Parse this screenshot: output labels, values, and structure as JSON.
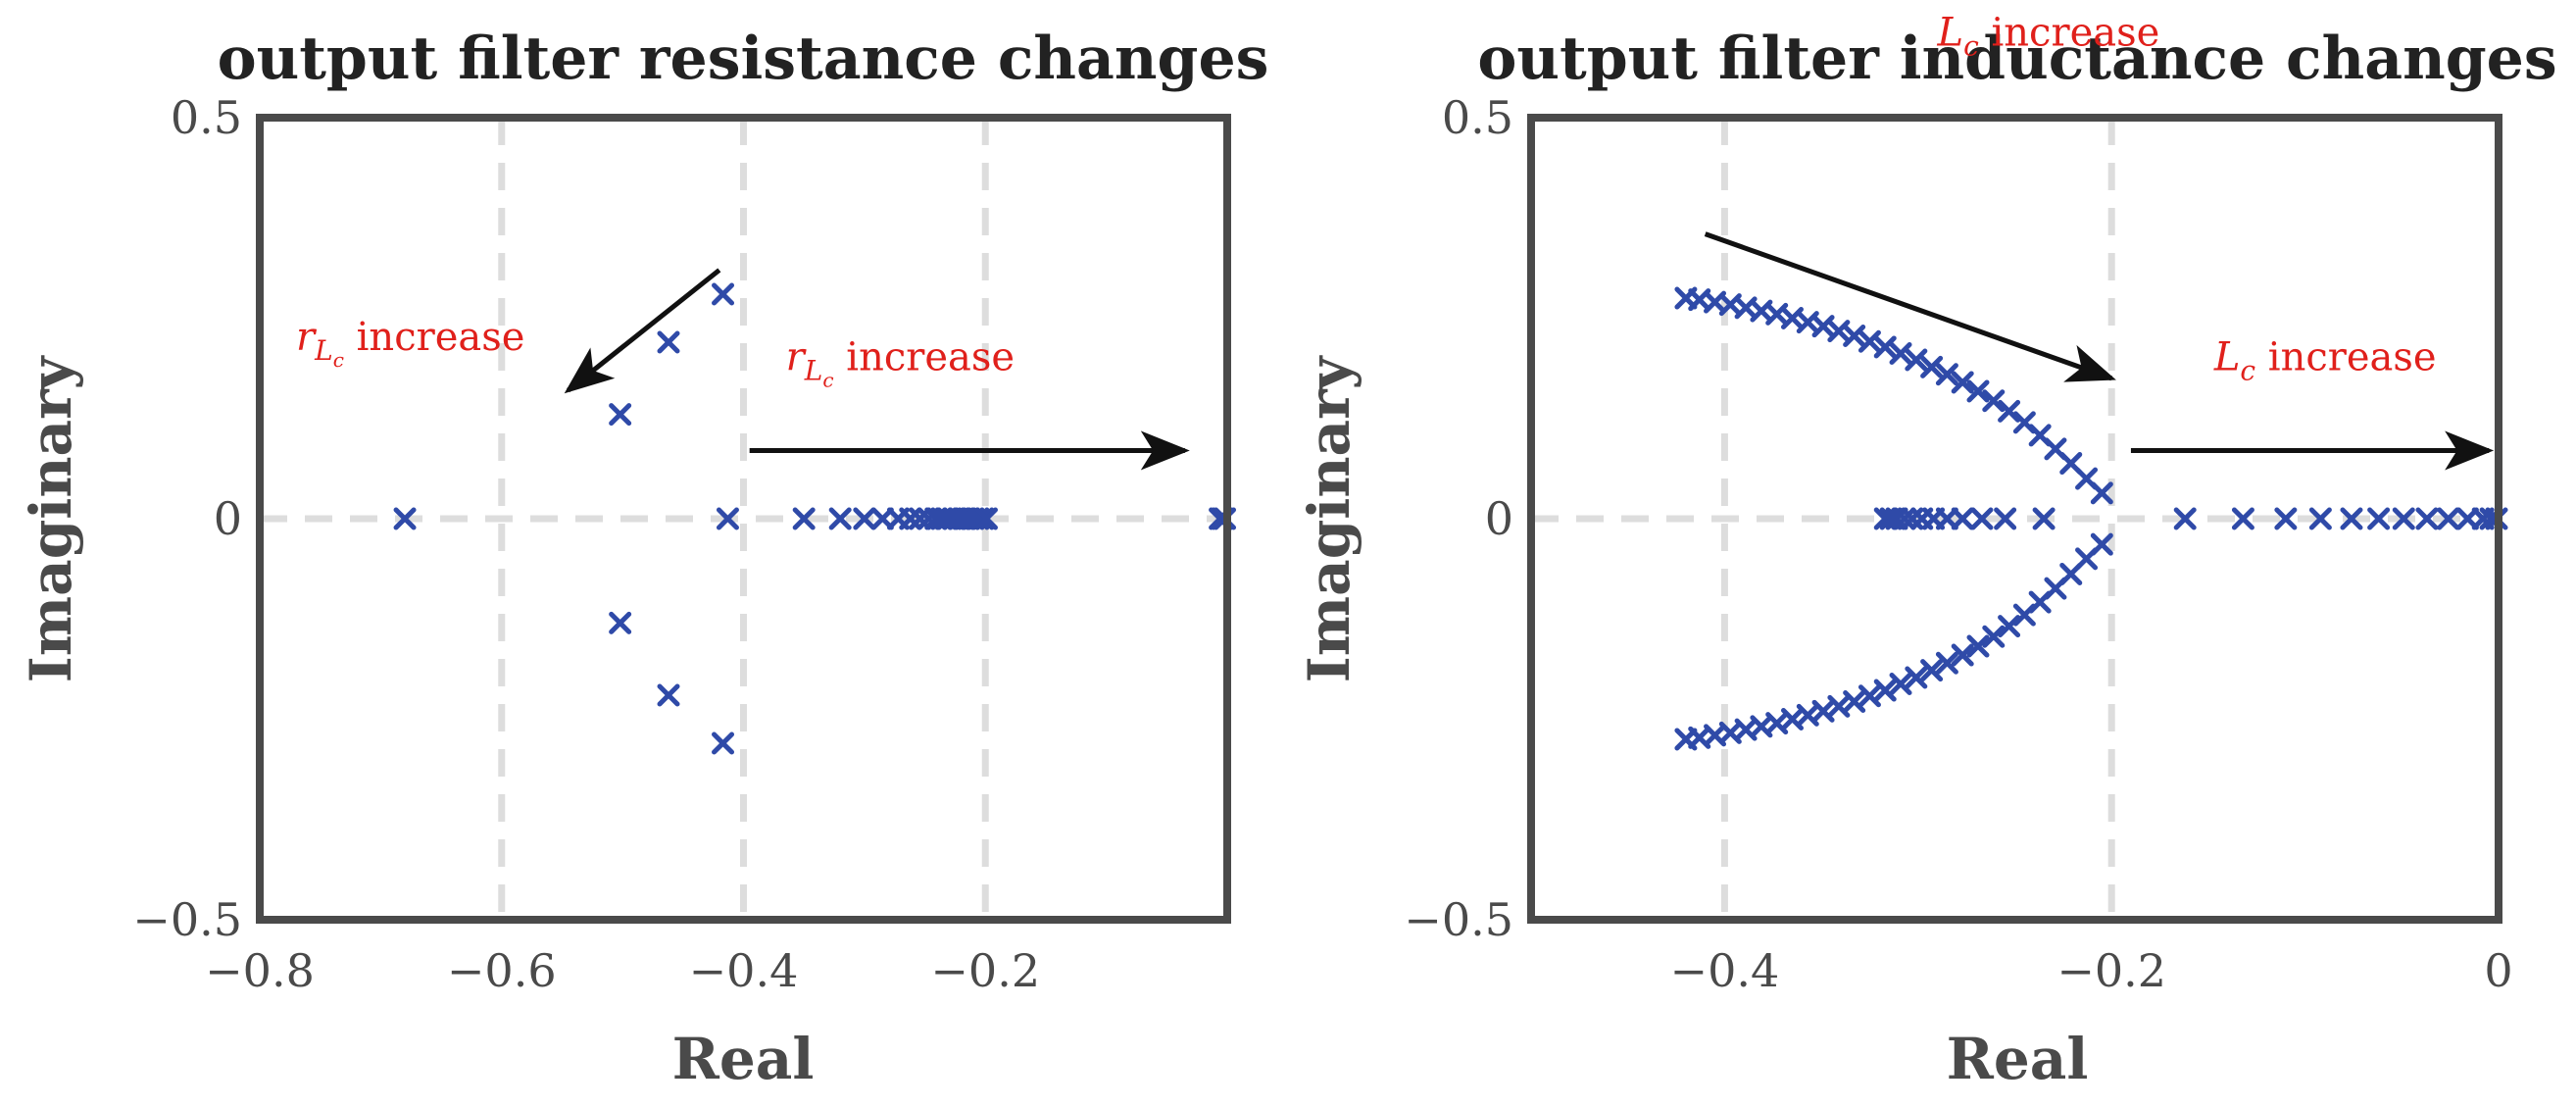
{
  "colors": {
    "marker": "#2f4aa8",
    "axes": "#4a4a4a",
    "grid": "#dddddd",
    "annotation": "#e0201b",
    "arrow": "#111111"
  },
  "chart_data": [
    {
      "type": "scatter",
      "title": "output filter resistance changes",
      "xlabel": "Real",
      "ylabel": "Imaginary",
      "xlim": [
        -0.8,
        0.0
      ],
      "ylim": [
        -0.5,
        0.5
      ],
      "xticks": [
        -0.8,
        -0.6,
        -0.4,
        -0.2
      ],
      "xtick_labels": [
        "−0.8",
        "−0.6",
        "−0.4",
        "−0.2"
      ],
      "yticks": [
        -0.5,
        0,
        0.5
      ],
      "ytick_labels": [
        "−0.5",
        "0",
        "0.5"
      ],
      "grid": "dashed",
      "marker": "x",
      "series": [
        {
          "name": "poles",
          "points": [
            [
              -0.417,
              0.28
            ],
            [
              -0.417,
              -0.28
            ],
            [
              -0.462,
              0.22
            ],
            [
              -0.462,
              -0.22
            ],
            [
              -0.502,
              0.13
            ],
            [
              -0.502,
              -0.13
            ],
            [
              -0.68,
              0.0
            ],
            [
              -0.413,
              0.0
            ],
            [
              -0.35,
              0.0
            ],
            [
              -0.32,
              0.0
            ],
            [
              -0.3,
              0.0
            ],
            [
              -0.285,
              0.0
            ],
            [
              -0.272,
              0.0
            ],
            [
              -0.262,
              0.0
            ],
            [
              -0.254,
              0.0
            ],
            [
              -0.247,
              0.0
            ],
            [
              -0.241,
              0.0
            ],
            [
              -0.236,
              0.0
            ],
            [
              -0.231,
              0.0
            ],
            [
              -0.226,
              0.0
            ],
            [
              -0.222,
              0.0
            ],
            [
              -0.218,
              0.0
            ],
            [
              -0.214,
              0.0
            ],
            [
              -0.21,
              0.0
            ],
            [
              -0.206,
              0.0
            ],
            [
              -0.202,
              0.0
            ],
            [
              -0.199,
              0.0
            ],
            [
              -0.006,
              0.0
            ],
            [
              -0.004,
              0.0
            ],
            [
              -0.002,
              0.0
            ]
          ]
        }
      ],
      "annotations": [
        {
          "label": "r",
          "sub": "L",
          "subsub": "c",
          "suffix": " increase",
          "arrow_from": [
            -0.42,
            0.31
          ],
          "arrow_to": [
            -0.545,
            0.16
          ],
          "text_at": [
            -0.77,
            0.21
          ]
        },
        {
          "label": "r",
          "sub": "L",
          "subsub": "c",
          "suffix": " increase",
          "arrow_from": [
            -0.395,
            0.085
          ],
          "arrow_to": [
            -0.035,
            0.085
          ],
          "text_at": [
            -0.365,
            0.185
          ]
        }
      ]
    },
    {
      "type": "scatter",
      "title": "output filter inductance changes",
      "xlabel": "Real",
      "ylabel": "Imaginary",
      "xlim": [
        -0.5,
        0.0
      ],
      "ylim": [
        -0.5,
        0.5
      ],
      "xticks": [
        -0.4,
        -0.2,
        0
      ],
      "xtick_labels": [
        "−0.4",
        "−0.2",
        "0"
      ],
      "yticks": [
        -0.5,
        0,
        0.5
      ],
      "ytick_labels": [
        "−0.5",
        "0",
        "0.5"
      ],
      "grid": "dashed",
      "marker": "x",
      "series": [
        {
          "name": "poles",
          "points": [
            [
              -0.42,
              0.275
            ],
            [
              -0.413,
              0.273
            ],
            [
              -0.405,
              0.27
            ],
            [
              -0.397,
              0.267
            ],
            [
              -0.389,
              0.263
            ],
            [
              -0.381,
              0.259
            ],
            [
              -0.373,
              0.255
            ],
            [
              -0.365,
              0.25
            ],
            [
              -0.357,
              0.245
            ],
            [
              -0.349,
              0.24
            ],
            [
              -0.341,
              0.234
            ],
            [
              -0.333,
              0.228
            ],
            [
              -0.325,
              0.221
            ],
            [
              -0.317,
              0.214
            ],
            [
              -0.309,
              0.206
            ],
            [
              -0.301,
              0.198
            ],
            [
              -0.293,
              0.189
            ],
            [
              -0.285,
              0.18
            ],
            [
              -0.277,
              0.17
            ],
            [
              -0.269,
              0.159
            ],
            [
              -0.261,
              0.147
            ],
            [
              -0.253,
              0.134
            ],
            [
              -0.245,
              0.12
            ],
            [
              -0.237,
              0.104
            ],
            [
              -0.229,
              0.087
            ],
            [
              -0.221,
              0.069
            ],
            [
              -0.213,
              0.05
            ],
            [
              -0.205,
              0.032
            ],
            [
              -0.42,
              -0.275
            ],
            [
              -0.413,
              -0.273
            ],
            [
              -0.405,
              -0.27
            ],
            [
              -0.397,
              -0.267
            ],
            [
              -0.389,
              -0.263
            ],
            [
              -0.381,
              -0.259
            ],
            [
              -0.373,
              -0.255
            ],
            [
              -0.365,
              -0.25
            ],
            [
              -0.357,
              -0.245
            ],
            [
              -0.349,
              -0.24
            ],
            [
              -0.341,
              -0.234
            ],
            [
              -0.333,
              -0.228
            ],
            [
              -0.325,
              -0.221
            ],
            [
              -0.317,
              -0.214
            ],
            [
              -0.309,
              -0.206
            ],
            [
              -0.301,
              -0.198
            ],
            [
              -0.293,
              -0.189
            ],
            [
              -0.285,
              -0.18
            ],
            [
              -0.277,
              -0.17
            ],
            [
              -0.269,
              -0.159
            ],
            [
              -0.261,
              -0.147
            ],
            [
              -0.253,
              -0.134
            ],
            [
              -0.245,
              -0.12
            ],
            [
              -0.237,
              -0.104
            ],
            [
              -0.229,
              -0.087
            ],
            [
              -0.221,
              -0.069
            ],
            [
              -0.213,
              -0.05
            ],
            [
              -0.205,
              -0.032
            ],
            [
              -0.317,
              0.0
            ],
            [
              -0.314,
              0.0
            ],
            [
              -0.311,
              0.0
            ],
            [
              -0.307,
              0.0
            ],
            [
              -0.303,
              0.0
            ],
            [
              -0.298,
              0.0
            ],
            [
              -0.292,
              0.0
            ],
            [
              -0.285,
              0.0
            ],
            [
              -0.277,
              0.0
            ],
            [
              -0.267,
              0.0
            ],
            [
              -0.255,
              0.0
            ],
            [
              -0.235,
              0.0
            ],
            [
              -0.162,
              0.0
            ],
            [
              -0.132,
              0.0
            ],
            [
              -0.11,
              0.0
            ],
            [
              -0.092,
              0.0
            ],
            [
              -0.076,
              0.0
            ],
            [
              -0.062,
              0.0
            ],
            [
              -0.049,
              0.0
            ],
            [
              -0.037,
              0.0
            ],
            [
              -0.026,
              0.0
            ],
            [
              -0.016,
              0.0
            ],
            [
              -0.008,
              0.0
            ],
            [
              -0.004,
              0.0
            ],
            [
              -0.001,
              0.0
            ]
          ]
        }
      ],
      "annotations": [
        {
          "label": "L",
          "sub": "c",
          "suffix": " increase",
          "arrow_from": [
            -0.41,
            0.355
          ],
          "arrow_to": [
            -0.2,
            0.175
          ],
          "text_at": [
            -0.29,
            0.59
          ]
        },
        {
          "label": "L",
          "sub": "c",
          "suffix": " increase",
          "arrow_from": [
            -0.19,
            0.085
          ],
          "arrow_to": [
            -0.005,
            0.085
          ],
          "text_at": [
            -0.147,
            0.185
          ]
        }
      ]
    }
  ]
}
